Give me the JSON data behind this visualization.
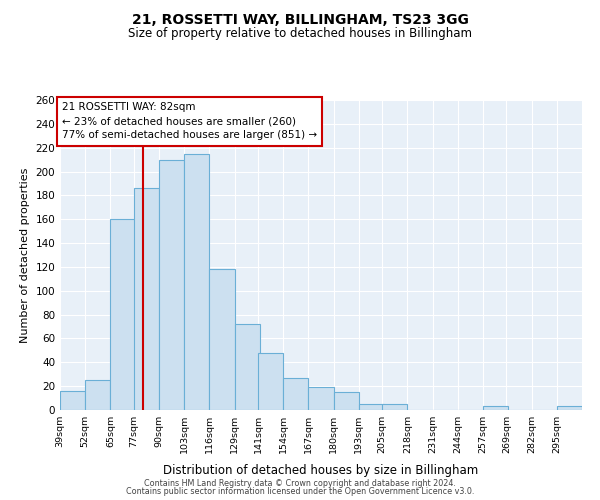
{
  "title": "21, ROSSETTI WAY, BILLINGHAM, TS23 3GG",
  "subtitle": "Size of property relative to detached houses in Billingham",
  "xlabel": "Distribution of detached houses by size in Billingham",
  "ylabel": "Number of detached properties",
  "bin_labels": [
    "39sqm",
    "52sqm",
    "65sqm",
    "77sqm",
    "90sqm",
    "103sqm",
    "116sqm",
    "129sqm",
    "141sqm",
    "154sqm",
    "167sqm",
    "180sqm",
    "193sqm",
    "205sqm",
    "218sqm",
    "231sqm",
    "244sqm",
    "257sqm",
    "269sqm",
    "282sqm",
    "295sqm"
  ],
  "bin_left": [
    39,
    52,
    65,
    77,
    90,
    103,
    116,
    129,
    141,
    154,
    167,
    180,
    193,
    205,
    218,
    231,
    244,
    257,
    269,
    282,
    295
  ],
  "bin_width": 13,
  "values": [
    16,
    25,
    160,
    186,
    210,
    215,
    118,
    72,
    48,
    27,
    19,
    15,
    5,
    5,
    0,
    0,
    0,
    3,
    0,
    0,
    3
  ],
  "bar_color": "#cce0f0",
  "bar_edge_color": "#6aafd6",
  "vline_x": 82,
  "vline_color": "#cc0000",
  "annotation_title": "21 ROSSETTI WAY: 82sqm",
  "annotation_line1": "← 23% of detached houses are smaller (260)",
  "annotation_line2": "77% of semi-detached houses are larger (851) →",
  "annotation_box_facecolor": "#ffffff",
  "annotation_box_edgecolor": "#cc0000",
  "ylim": [
    0,
    260
  ],
  "yticks": [
    0,
    20,
    40,
    60,
    80,
    100,
    120,
    140,
    160,
    180,
    200,
    220,
    240,
    260
  ],
  "background_color": "#e8f0f8",
  "grid_color": "#ffffff",
  "footer1": "Contains HM Land Registry data © Crown copyright and database right 2024.",
  "footer2": "Contains public sector information licensed under the Open Government Licence v3.0."
}
